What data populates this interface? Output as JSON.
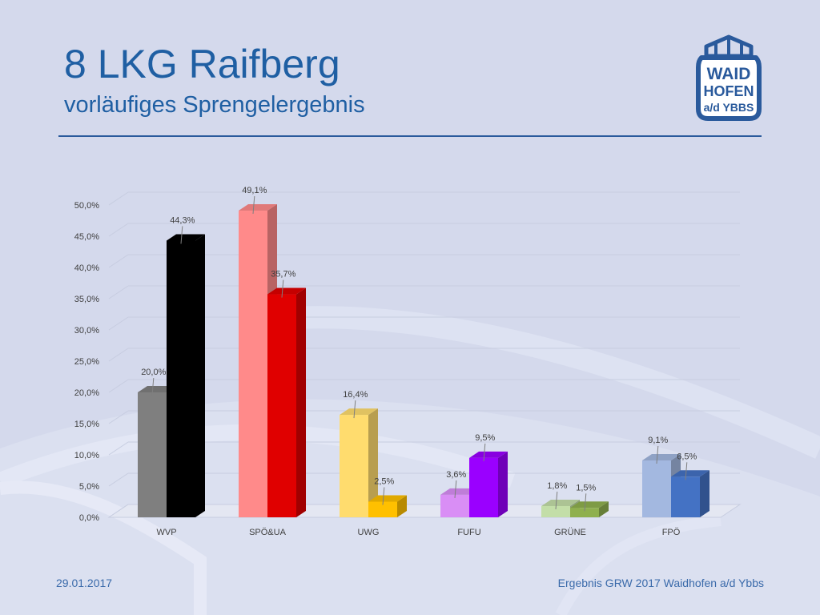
{
  "slide": {
    "title": "8 LKG Raifberg",
    "subtitle": "vorläufiges Sprengelergebnis",
    "footer_date": "29.01.2017",
    "footer_caption": "Ergebnis GRW 2017 Waidhofen a/d Ybbs",
    "logo_text": [
      "WAID",
      "HOFEN",
      "a/d YBBS"
    ],
    "colors": {
      "background": "#d4d9ec",
      "title": "#1f5fa3",
      "rule": "#2a5a9c"
    }
  },
  "chart_data": {
    "type": "bar",
    "style": "3d-clustered",
    "categories": [
      "WVP",
      "SPÖ&UA",
      "UWG",
      "FUFU",
      "GRÜNE",
      "FPÖ"
    ],
    "series": [
      {
        "values": [
          20.0,
          49.1,
          16.4,
          3.6,
          1.8,
          9.1
        ],
        "labels": [
          "20,0%",
          "49,1%",
          "16,4%",
          "3,6%",
          "1,8%",
          "9,1%"
        ],
        "colors": [
          "#7f7f7f",
          "#ff8a8a",
          "#ffdc6e",
          "#d98ef5",
          "#c3dea8",
          "#a3b8e0"
        ]
      },
      {
        "values": [
          44.3,
          35.7,
          2.5,
          9.5,
          1.5,
          6.5
        ],
        "labels": [
          "44,3%",
          "35,7%",
          "2,5%",
          "9,5%",
          "1,5%",
          "6,5%"
        ],
        "colors": [
          "#000000",
          "#e00000",
          "#ffc000",
          "#9a00ff",
          "#8fb04e",
          "#4472c4"
        ]
      }
    ],
    "y_ticks": [
      "0,0%",
      "5,0%",
      "10,0%",
      "15,0%",
      "20,0%",
      "25,0%",
      "30,0%",
      "35,0%",
      "40,0%",
      "45,0%",
      "50,0%"
    ],
    "ylim": [
      0,
      50
    ],
    "ytick_step": 5,
    "grid": true,
    "legend": "none"
  }
}
